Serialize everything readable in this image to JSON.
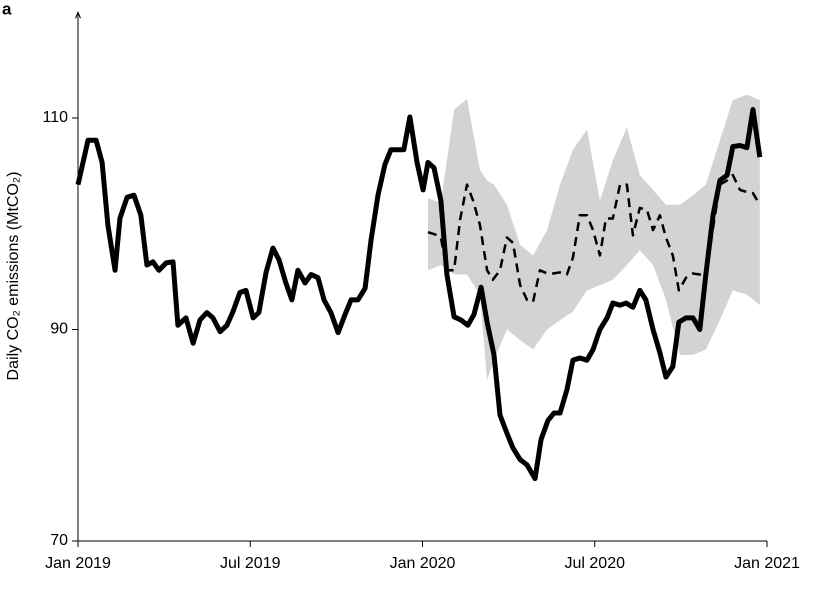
{
  "chart_data": {
    "type": "line",
    "panel_label": "a",
    "y_label": "Daily CO₂ emissions (MtCO₂)",
    "xlim": [
      0,
      24
    ],
    "xticks": [
      {
        "value": 0,
        "label": "Jan 2019"
      },
      {
        "value": 6,
        "label": "Jul 2019"
      },
      {
        "value": 12,
        "label": "Jan 2020"
      },
      {
        "value": 18,
        "label": "Jul 2020"
      },
      {
        "value": 24,
        "label": "Jan 2021"
      }
    ],
    "ylim": [
      70,
      120
    ],
    "yticks": [
      70,
      90,
      110
    ],
    "band": {
      "color": "#d3d3d3",
      "x": [
        12.19,
        12.64,
        13.1,
        13.55,
        14.0,
        14.25,
        14.49,
        14.94,
        15.4,
        15.85,
        16.34,
        16.79,
        17.24,
        17.73,
        18.18,
        18.63,
        19.12,
        19.57,
        20.03,
        20.48,
        20.97,
        21.42,
        21.87,
        22.36,
        22.81,
        23.3,
        23.75
      ],
      "upper": [
        102.4,
        102.0,
        110.8,
        111.8,
        105.1,
        104.1,
        103.7,
        101.8,
        98.0,
        97.0,
        99.4,
        103.7,
        107.0,
        108.9,
        102.2,
        106.0,
        109.1,
        104.6,
        103.2,
        101.8,
        101.8,
        102.7,
        103.7,
        107.9,
        111.7,
        112.2,
        111.7
      ],
      "lower": [
        95.6,
        96.1,
        95.2,
        95.2,
        93.3,
        85.2,
        87.1,
        90.0,
        89.0,
        88.1,
        90.0,
        90.9,
        91.7,
        93.7,
        94.2,
        94.7,
        96.1,
        97.5,
        96.1,
        92.8,
        87.6,
        87.6,
        88.1,
        90.9,
        93.7,
        93.3,
        92.3
      ]
    },
    "series": [
      {
        "color": "#000000",
        "dash": "solid",
        "x": [
          0,
          0.35,
          0.63,
          0.84,
          1.04,
          1.29,
          1.46,
          1.71,
          1.95,
          2.19,
          2.4,
          2.61,
          2.82,
          3.07,
          3.31,
          3.48,
          3.76,
          4.01,
          4.25,
          4.49,
          4.7,
          4.95,
          5.19,
          5.4,
          5.64,
          5.85,
          6.1,
          6.3,
          6.55,
          6.79,
          7.0,
          7.24,
          7.45,
          7.66,
          7.91,
          8.12,
          8.36,
          8.57,
          8.81,
          9.06,
          9.3,
          9.51,
          9.75,
          10.0,
          10.21,
          10.45,
          10.69,
          10.9,
          11.15,
          11.35,
          11.56,
          11.81,
          12.02,
          12.19,
          12.4,
          12.64,
          12.85,
          13.1,
          13.34,
          13.58,
          13.79,
          14.04,
          14.25,
          14.49,
          14.7,
          14.94,
          15.15,
          15.4,
          15.64,
          15.92,
          16.13,
          16.37,
          16.58,
          16.79,
          17.03,
          17.24,
          17.48,
          17.73,
          17.94,
          18.18,
          18.43,
          18.63,
          18.88,
          19.09,
          19.33,
          19.57,
          19.78,
          20.03,
          20.27,
          20.48,
          20.72,
          20.93,
          21.18,
          21.42,
          21.66,
          21.87,
          22.12,
          22.36,
          22.61,
          22.81,
          23.06,
          23.3,
          23.51,
          23.75
        ],
        "values": [
          103.7,
          107.9,
          107.9,
          105.8,
          99.9,
          95.6,
          100.5,
          102.5,
          102.7,
          100.8,
          96.1,
          96.4,
          95.6,
          96.3,
          96.4,
          90.4,
          91.1,
          88.7,
          90.9,
          91.6,
          91.1,
          89.8,
          90.4,
          91.7,
          93.5,
          93.7,
          91.1,
          91.6,
          95.4,
          97.7,
          96.6,
          94.4,
          92.8,
          95.6,
          94.4,
          95.2,
          94.9,
          92.8,
          91.6,
          89.7,
          91.4,
          92.8,
          92.8,
          93.9,
          98.5,
          102.7,
          105.6,
          107.0,
          107.0,
          107.0,
          110.1,
          105.8,
          103.2,
          105.8,
          105.3,
          102.2,
          95.2,
          91.2,
          90.9,
          90.4,
          91.4,
          94.0,
          90.7,
          87.6,
          81.9,
          80.2,
          78.8,
          77.7,
          77.2,
          75.9,
          79.6,
          81.4,
          82.1,
          82.1,
          84.3,
          87.1,
          87.3,
          87.1,
          88.1,
          90.0,
          91.1,
          92.5,
          92.3,
          92.5,
          92.1,
          93.7,
          92.8,
          90.0,
          87.8,
          85.5,
          86.5,
          90.7,
          91.1,
          91.1,
          90.0,
          95.2,
          100.8,
          104.1,
          104.6,
          107.3,
          107.4,
          107.2,
          110.8,
          106.3
        ]
      },
      {
        "color": "#000000",
        "dash": "dashed",
        "x": [
          12.19,
          12.43,
          12.64,
          12.85,
          13.1,
          13.31,
          13.55,
          13.76,
          14.0,
          14.25,
          14.45,
          14.7,
          14.94,
          15.15,
          15.4,
          15.64,
          15.85,
          16.09,
          16.34,
          16.54,
          16.79,
          17.03,
          17.24,
          17.48,
          17.73,
          17.94,
          18.18,
          18.39,
          18.63,
          18.88,
          19.12,
          19.33,
          19.57,
          19.82,
          20.03,
          20.27,
          20.48,
          20.72,
          20.93,
          21.18,
          21.42,
          21.66,
          21.87,
          22.12,
          22.36,
          22.61,
          22.81,
          23.06,
          23.3,
          23.51,
          23.75
        ],
        "values": [
          99.2,
          99.0,
          98.7,
          95.6,
          95.6,
          100.4,
          103.7,
          102.2,
          99.9,
          95.6,
          94.7,
          95.6,
          98.7,
          98.2,
          94.2,
          92.8,
          92.6,
          95.6,
          95.3,
          95.3,
          95.4,
          95.2,
          96.8,
          100.8,
          100.8,
          99.4,
          97.0,
          100.5,
          100.5,
          103.7,
          103.7,
          98.9,
          101.5,
          101.3,
          99.4,
          100.8,
          98.7,
          97.0,
          93.7,
          94.9,
          95.3,
          95.2,
          95.2,
          99.6,
          103.7,
          104.1,
          104.6,
          103.2,
          103.0,
          102.9,
          101.8
        ]
      }
    ]
  }
}
